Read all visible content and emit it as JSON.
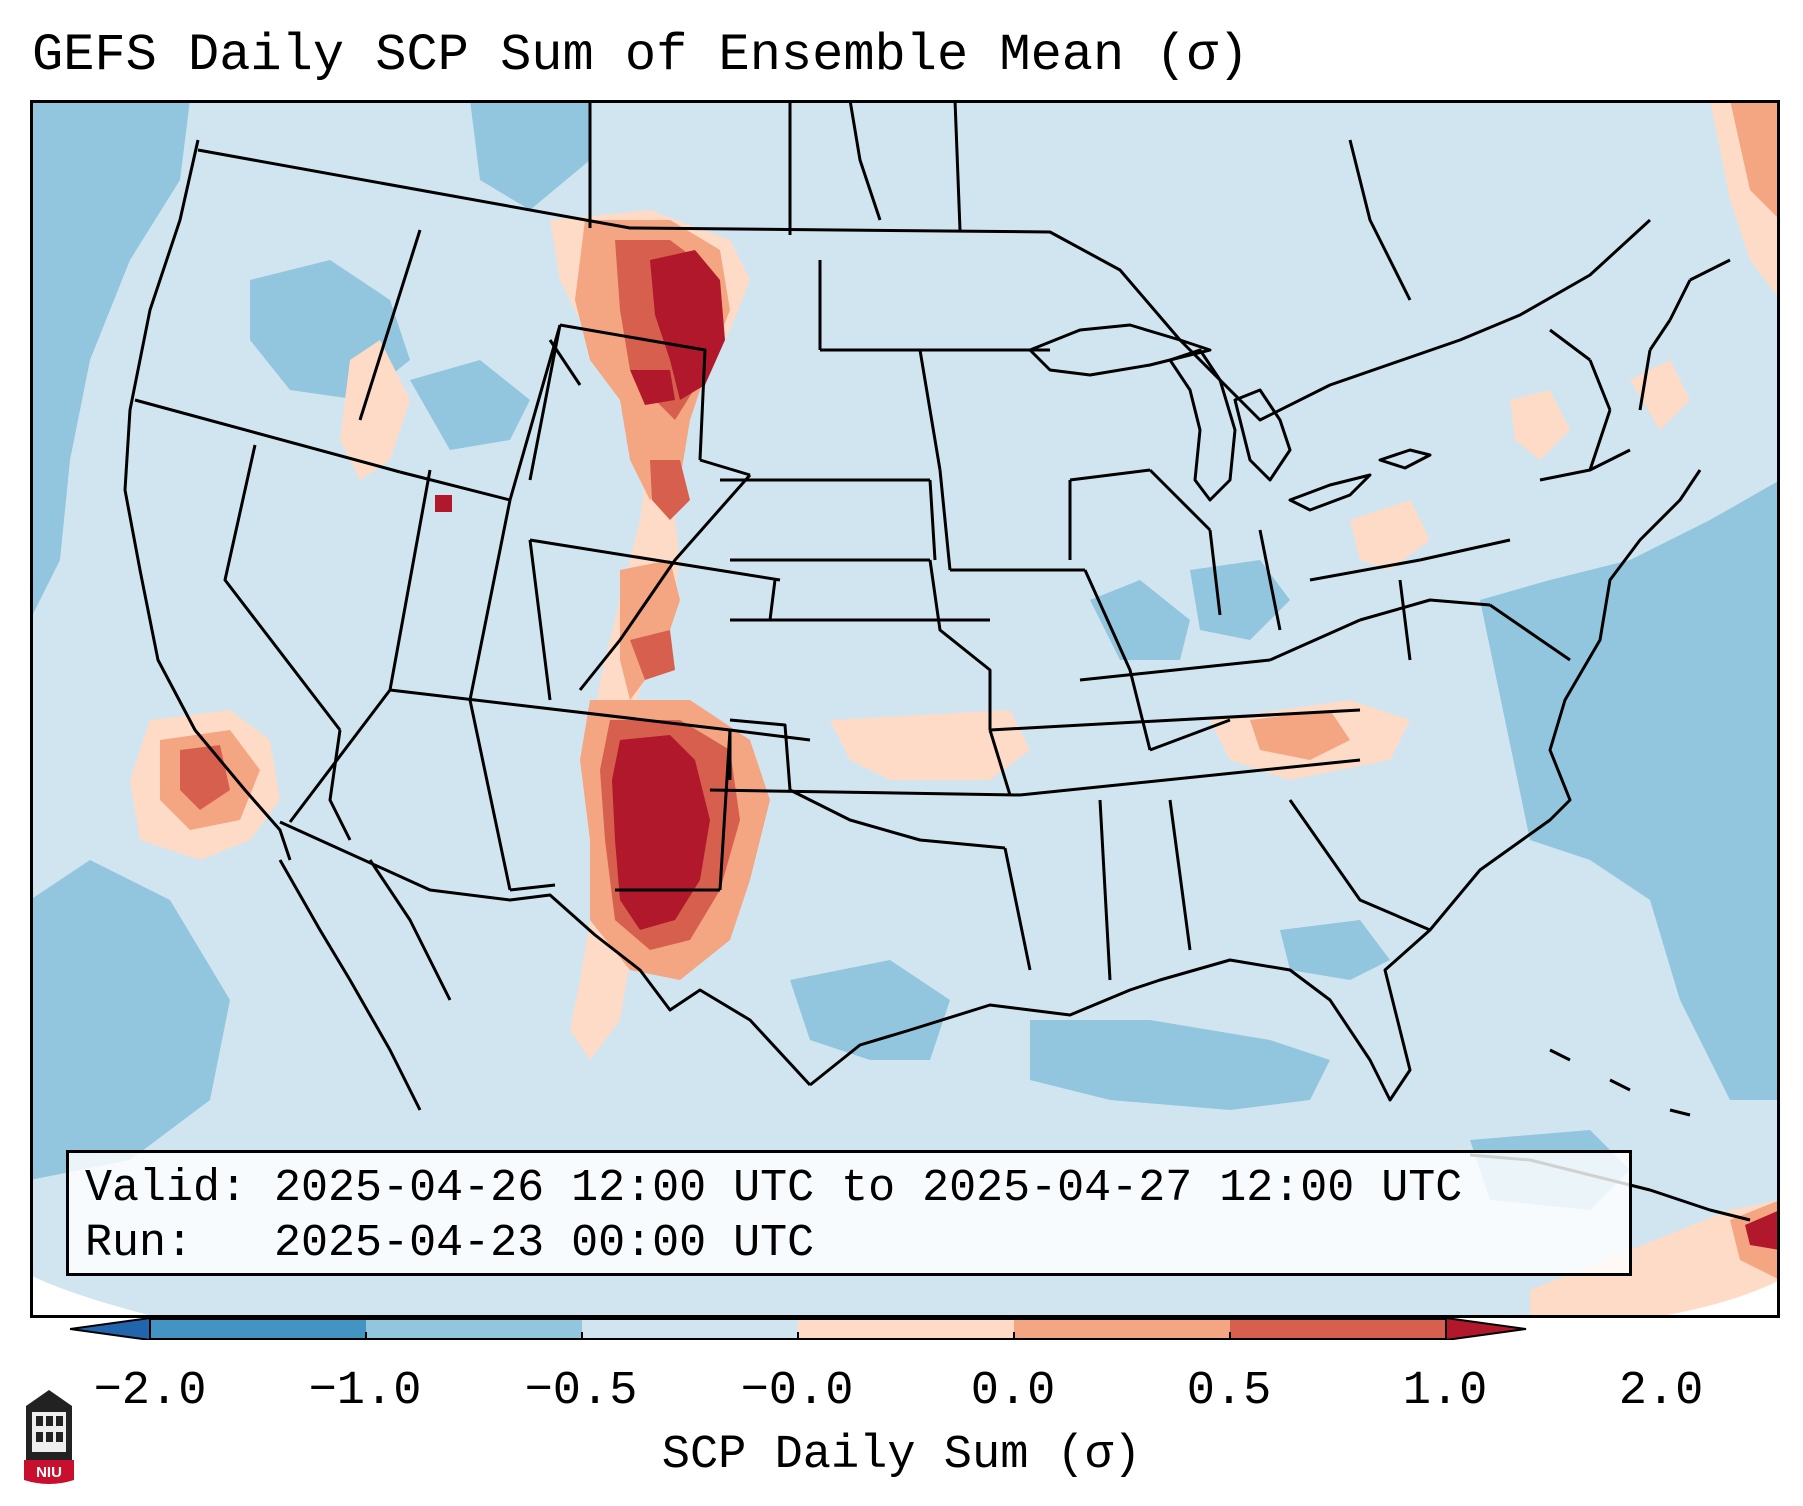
{
  "title": "GEFS Daily SCP Sum of Ensemble Mean (σ)",
  "info": {
    "valid_label": "Valid:",
    "valid_value": "2025-04-26 12:00 UTC to 2025-04-27 12:00 UTC",
    "run_label": "Run:",
    "run_value": "2025-04-23 00:00 UTC"
  },
  "colorbar": {
    "label": "SCP Daily Sum (σ)",
    "ticks": [
      "−2.0",
      "−1.0",
      "−0.5",
      "−0.0",
      "0.0",
      "0.5",
      "1.0",
      "2.0"
    ],
    "bin_colors": [
      "#4393c3",
      "#92c5de",
      "#d1e5f0",
      "#fddbc7",
      "#f4a582",
      "#d6604d"
    ],
    "under_color": "#2166ac",
    "over_color": "#b2182b"
  },
  "colors": {
    "neg_strong": "#92c5de",
    "neg_weak": "#d1e5f0",
    "pos_weak": "#fddbc7",
    "pos_mid": "#f4a582",
    "pos_strong": "#d6604d",
    "pos_extreme": "#b2182b"
  },
  "logo": {
    "text": "NIU"
  }
}
